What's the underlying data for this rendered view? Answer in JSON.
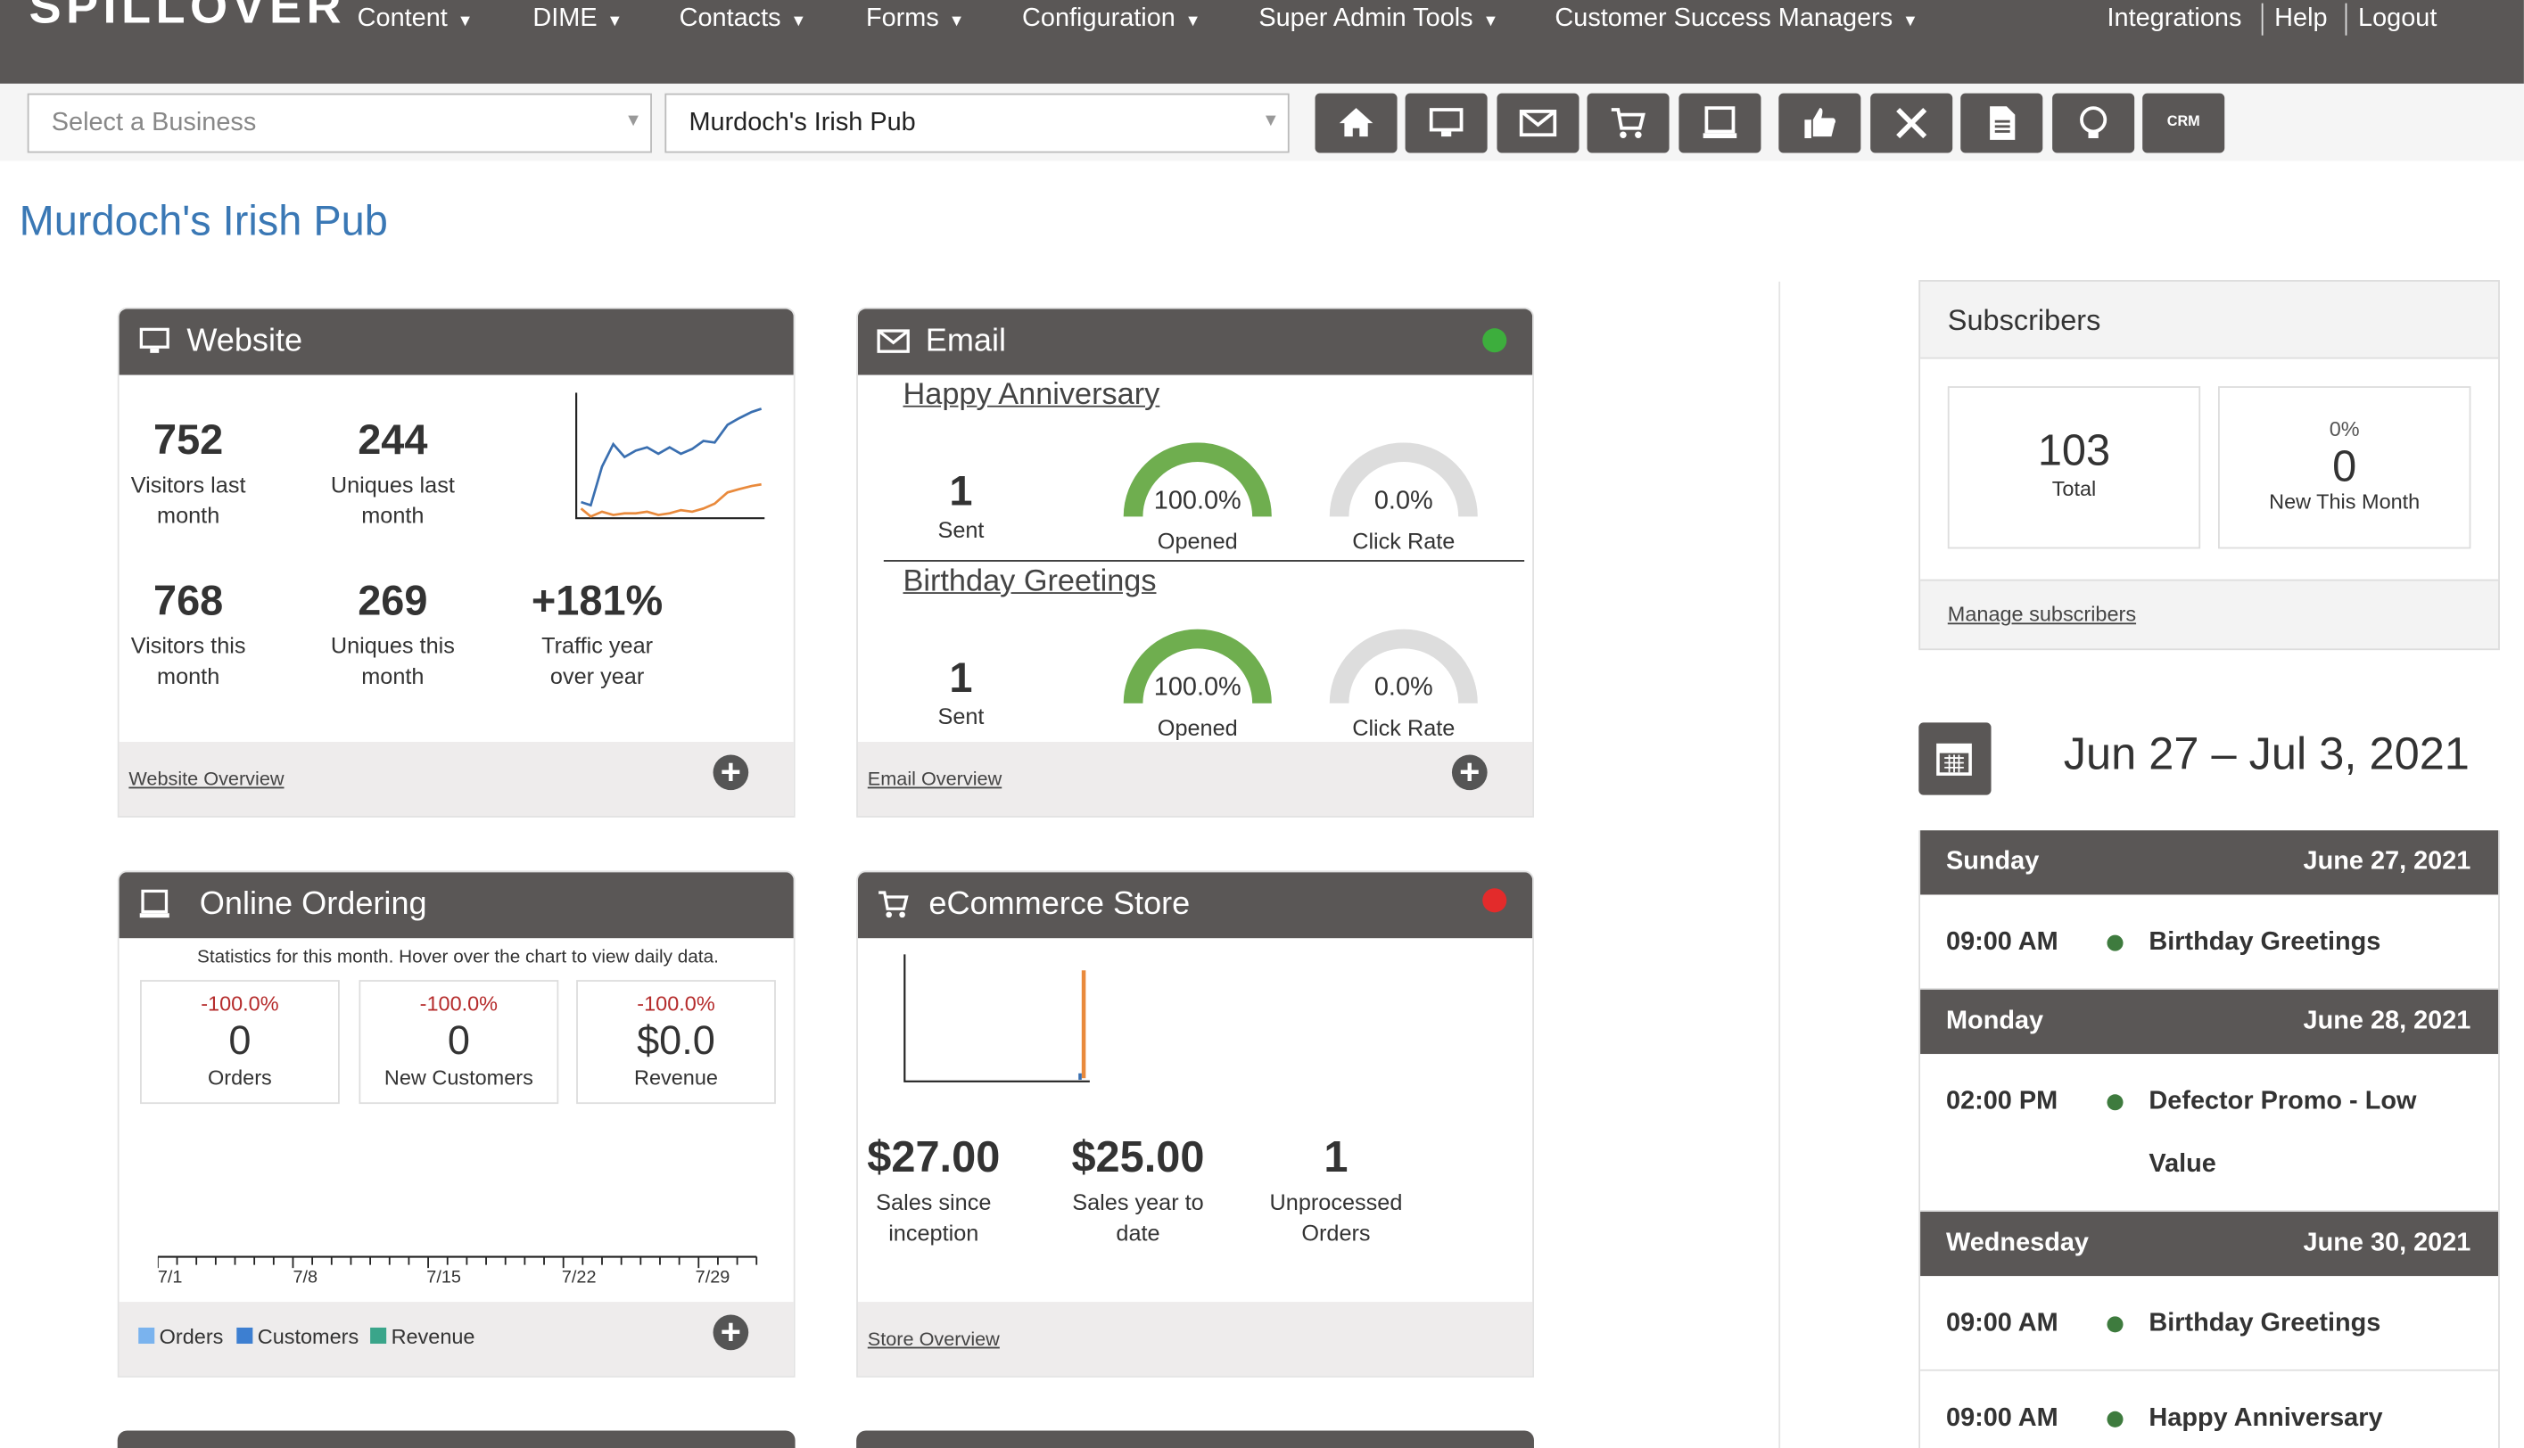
{
  "nav": {
    "brand": "SPILLOVER",
    "menu": [
      "Content",
      "DIME",
      "Contacts",
      "Forms",
      "Configuration",
      "Super Admin Tools",
      "Customer Success Managers"
    ],
    "links": [
      "Integrations",
      "Help",
      "Logout"
    ]
  },
  "toolbar": {
    "business_select": "Select a Business",
    "location_select": "Murdoch's Irish Pub",
    "crm": "CRM"
  },
  "page_title": "Murdoch's Irish Pub",
  "website": {
    "title": "Website",
    "stats": [
      {
        "value": "752",
        "label": "Visitors last month"
      },
      {
        "value": "244",
        "label": "Uniques last month"
      },
      {
        "value": "768",
        "label": "Visitors this month"
      },
      {
        "value": "269",
        "label": "Uniques this month"
      },
      {
        "value": "+181%",
        "label": "Traffic year over year"
      }
    ],
    "link": "Website Overview"
  },
  "email": {
    "title": "Email",
    "campaigns": [
      {
        "name": "Happy Anniversary",
        "sent": "1",
        "sent_label": "Sent",
        "opened": "100.0%",
        "opened_label": "Opened",
        "click": "0.0%",
        "click_label": "Click Rate"
      },
      {
        "name": "Birthday Greetings",
        "sent": "1",
        "sent_label": "Sent",
        "opened": "100.0%",
        "opened_label": "Opened",
        "click": "0.0%",
        "click_label": "Click Rate"
      }
    ],
    "link": "Email Overview"
  },
  "online_ordering": {
    "title": "Online Ordering",
    "note": "Statistics for this month. Hover over the chart to view daily data.",
    "stats": [
      {
        "change": "-100.0%",
        "value": "0",
        "label": "Orders"
      },
      {
        "change": "-100.0%",
        "value": "0",
        "label": "New Customers"
      },
      {
        "change": "-100.0%",
        "value": "$0.0",
        "label": "Revenue"
      }
    ],
    "axis_labels": [
      "7/1",
      "7/8",
      "7/15",
      "7/22",
      "7/29"
    ],
    "legend": [
      "Orders",
      "Customers",
      "Revenue"
    ]
  },
  "ecommerce": {
    "title": "eCommerce Store",
    "stats": [
      {
        "value": "$27.00",
        "label": "Sales since inception"
      },
      {
        "value": "$25.00",
        "label": "Sales year to date"
      },
      {
        "value": "1",
        "label": "Unprocessed Orders"
      }
    ],
    "link": "Store Overview"
  },
  "subscribers": {
    "title": "Subscribers",
    "total": "103",
    "total_label": "Total",
    "new_change": "0%",
    "new": "0",
    "new_label": "New This Month",
    "link": "Manage subscribers"
  },
  "calendar": {
    "range": "Jun 27 – Jul 3, 2021",
    "days": [
      {
        "day": "Sunday",
        "date": "June 27, 2021",
        "events": [
          {
            "time": "09:00 AM",
            "name": "Birthday Greetings"
          }
        ]
      },
      {
        "day": "Monday",
        "date": "June 28, 2021",
        "events": [
          {
            "time": "02:00 PM",
            "name": "Defector Promo - Low Value"
          }
        ]
      },
      {
        "day": "Wednesday",
        "date": "June 30, 2021",
        "events": [
          {
            "time": "09:00 AM",
            "name": "Birthday Greetings"
          },
          {
            "time": "09:00 AM",
            "name": "Happy Anniversary"
          }
        ]
      }
    ]
  }
}
